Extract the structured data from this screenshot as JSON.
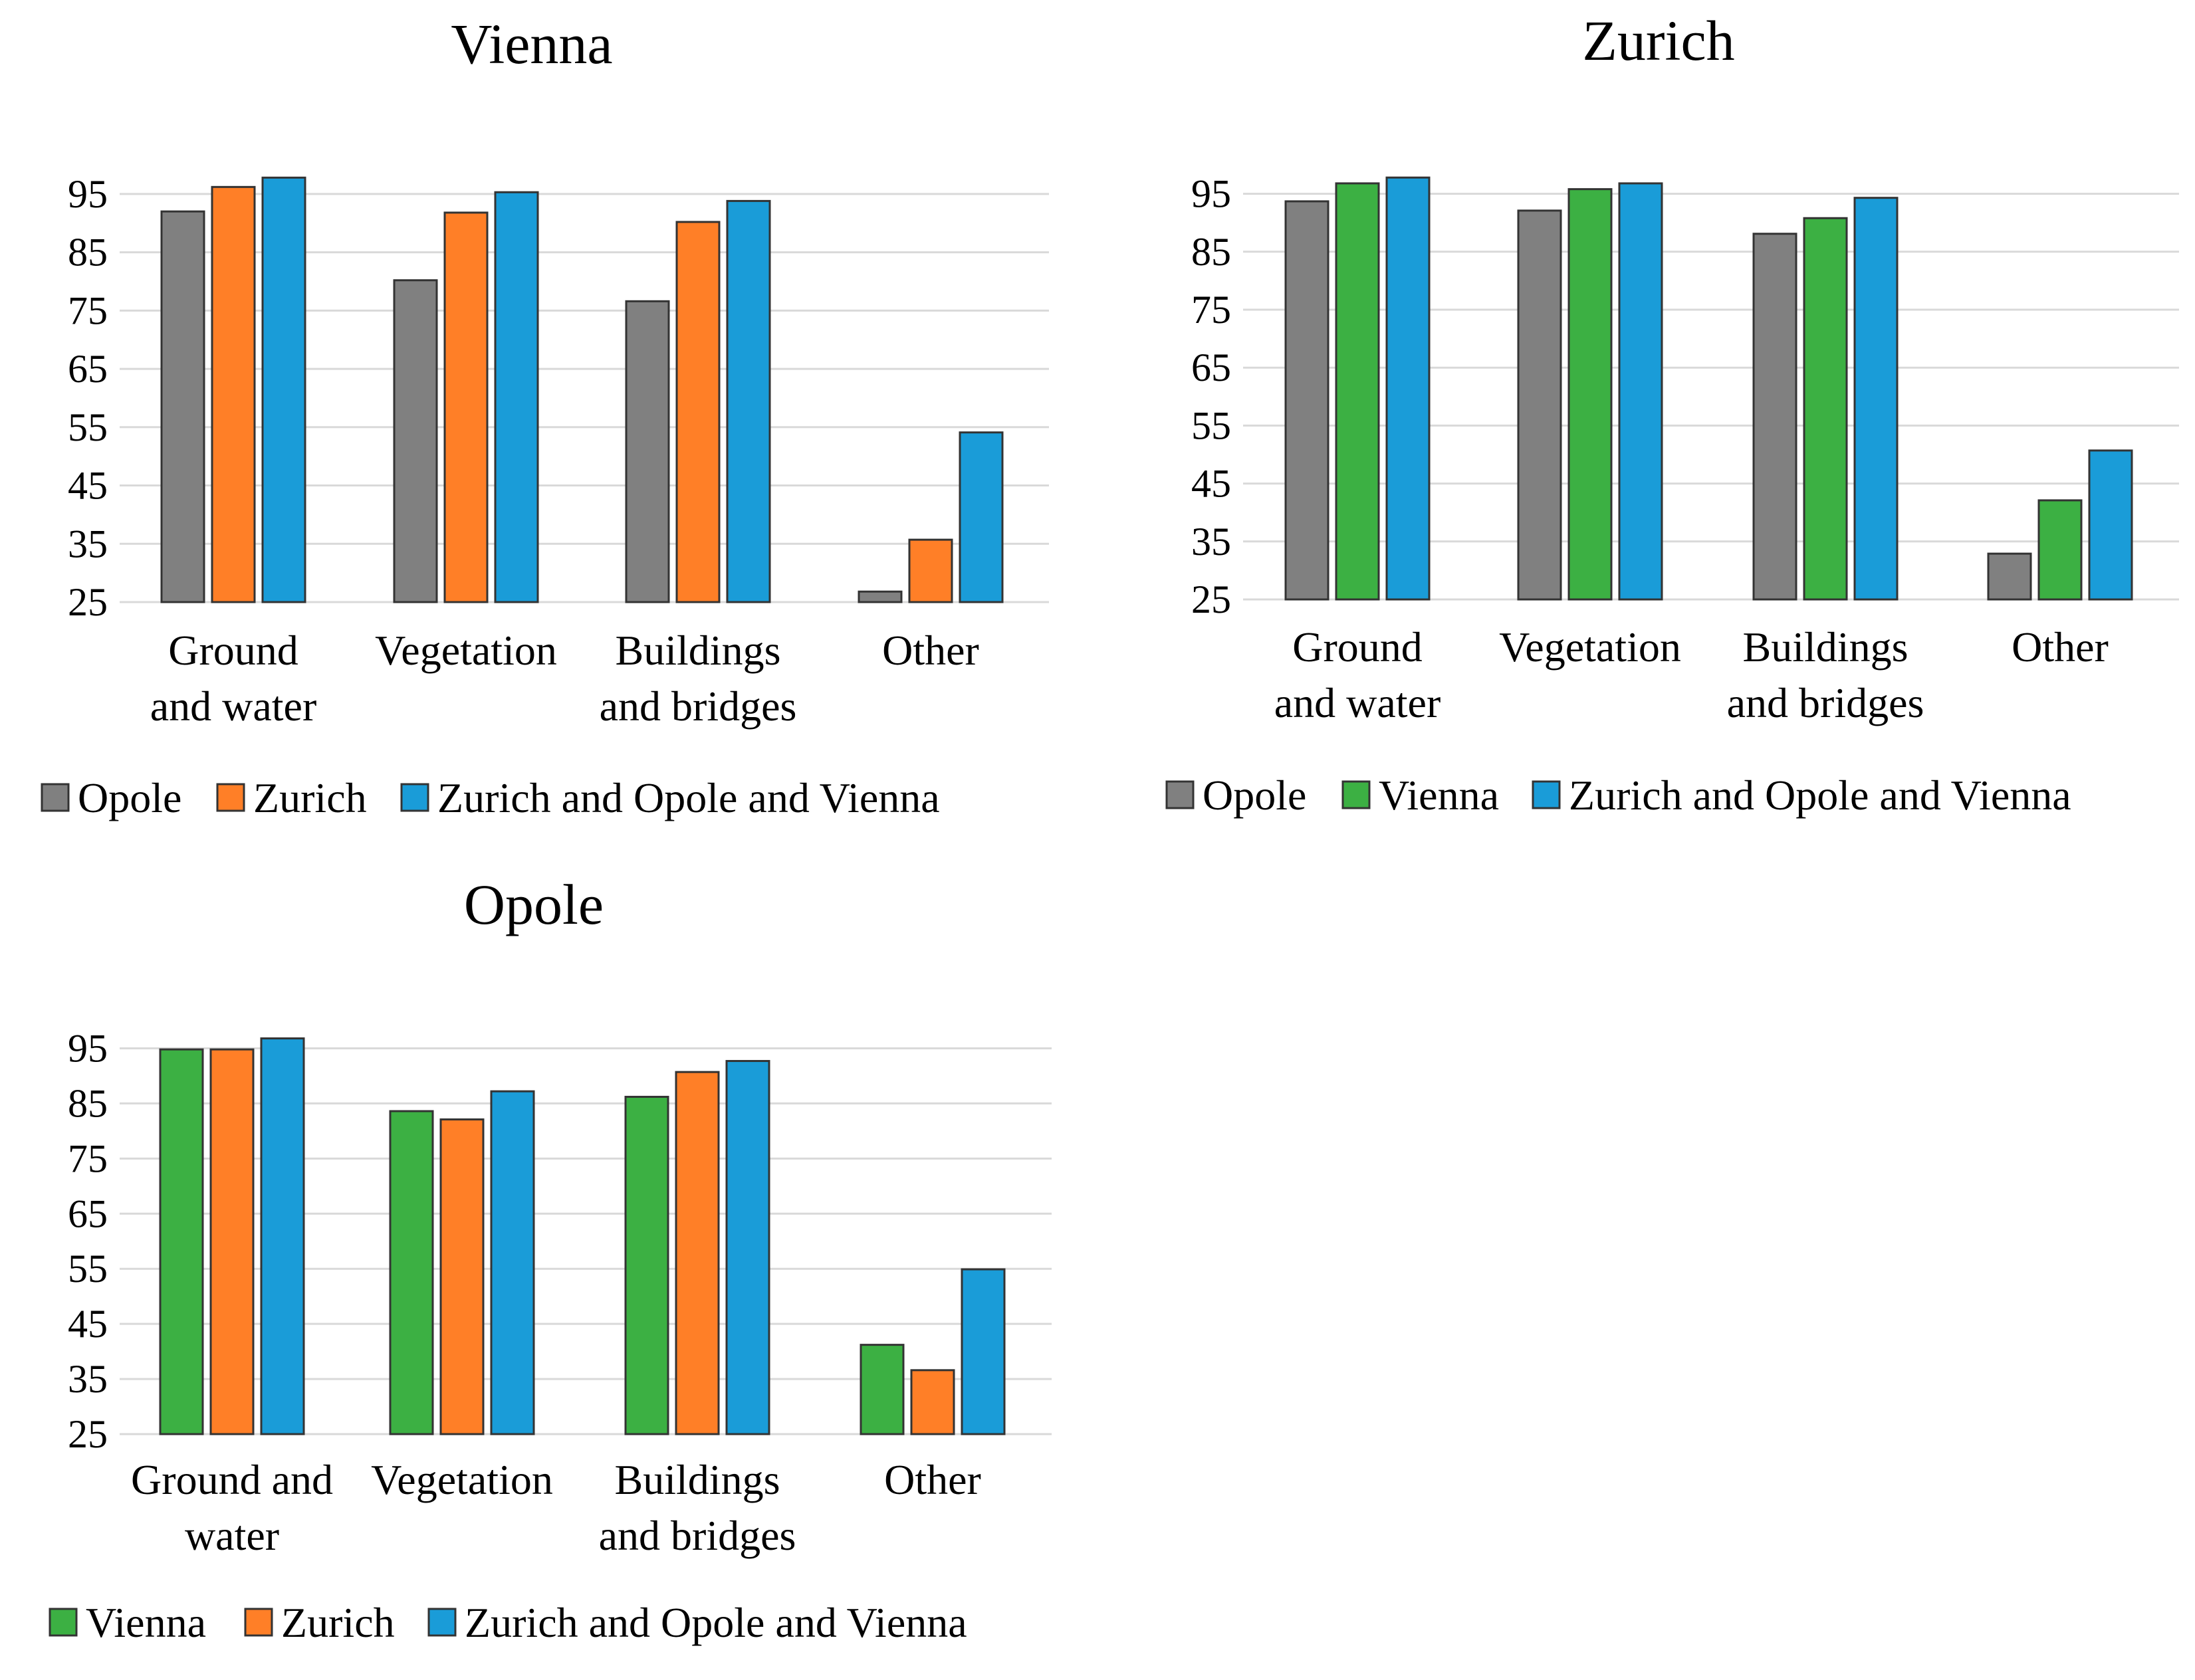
{
  "colors": {
    "Opole": "#808080",
    "Zurich": "#ff7f27",
    "Vienna": "#3cb043",
    "Zurich and Opole and Vienna": "#1a9cd8"
  },
  "chart_data": [
    {
      "type": "bar",
      "title": "Vienna",
      "xlabel": "",
      "ylabel": "",
      "ylim": [
        25,
        100
      ],
      "yticks": [
        25,
        35,
        45,
        55,
        65,
        75,
        85,
        95
      ],
      "grid": true,
      "legend_position": "bottom",
      "categories": [
        [
          "Ground",
          "and water"
        ],
        [
          "Vegetation"
        ],
        [
          "Buildings",
          "and bridges"
        ],
        [
          "Other"
        ]
      ],
      "series": [
        {
          "name": "Opole",
          "values": [
            92,
            80.2,
            76.6,
            26.8
          ]
        },
        {
          "name": "Zurich",
          "values": [
            96.2,
            91.8,
            90.2,
            35.7
          ]
        },
        {
          "name": "Zurich and Opole and Vienna",
          "values": [
            97.8,
            95.3,
            93.8,
            54.1
          ]
        }
      ]
    },
    {
      "type": "bar",
      "title": "Zurich",
      "xlabel": "",
      "ylabel": "",
      "ylim": [
        25,
        100
      ],
      "yticks": [
        25,
        35,
        45,
        55,
        65,
        75,
        85,
        95
      ],
      "grid": true,
      "legend_position": "bottom",
      "categories": [
        [
          "Ground",
          "and water"
        ],
        [
          "Vegetation"
        ],
        [
          "Buildings",
          "and bridges"
        ],
        [
          "Other"
        ]
      ],
      "series": [
        {
          "name": "Opole",
          "values": [
            93.7,
            92.1,
            88.1,
            32.9
          ]
        },
        {
          "name": "Vienna",
          "values": [
            96.8,
            95.8,
            90.8,
            42.1
          ]
        },
        {
          "name": "Zurich and Opole and Vienna",
          "values": [
            97.8,
            96.8,
            94.3,
            50.7
          ]
        }
      ]
    },
    {
      "type": "bar",
      "title": "Opole",
      "xlabel": "",
      "ylabel": "",
      "ylim": [
        25,
        100
      ],
      "yticks": [
        25,
        35,
        45,
        55,
        65,
        75,
        85,
        95
      ],
      "grid": true,
      "legend_position": "bottom",
      "categories": [
        [
          "Ground and",
          "water"
        ],
        [
          "Vegetation"
        ],
        [
          "Buildings",
          "and bridges"
        ],
        [
          "Other"
        ]
      ],
      "series": [
        {
          "name": "Vienna",
          "values": [
            94.8,
            83.6,
            86.2,
            41.2
          ]
        },
        {
          "name": "Zurich",
          "values": [
            94.8,
            82.1,
            90.7,
            36.6
          ]
        },
        {
          "name": "Zurich and Opole and Vienna",
          "values": [
            96.8,
            87.2,
            92.7,
            54.9
          ]
        }
      ]
    }
  ]
}
